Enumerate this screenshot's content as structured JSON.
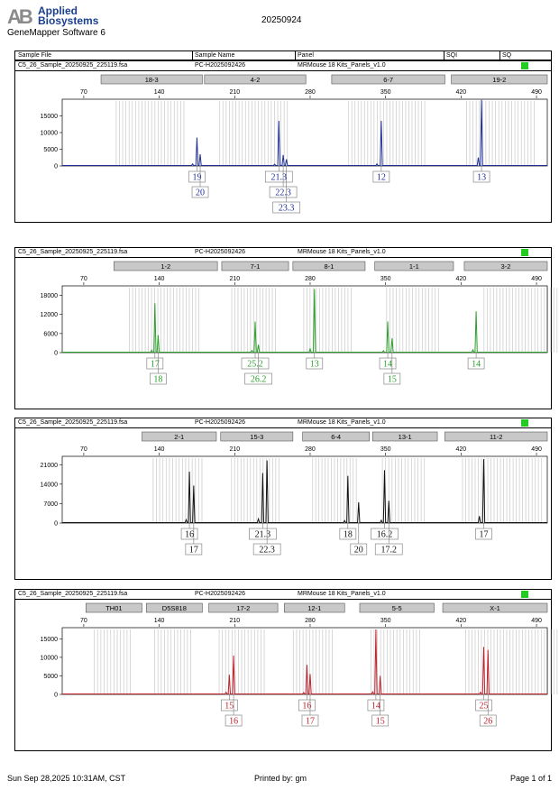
{
  "header": {
    "brand_mark": "AB",
    "brand_line1": "Applied",
    "brand_line2": "Biosystems",
    "software": "GeneMapper Software 6",
    "date": "20250924"
  },
  "columns": [
    "Sample File",
    "Sample Name",
    "Panel",
    "SQI",
    "SQ"
  ],
  "footer": {
    "printed_at": "Sun Sep 28,2025 10:31AM, CST",
    "printed_by": "Printed by: gm",
    "page": "Page 1 of 1"
  },
  "chart_data": [
    {
      "type": "line",
      "sample_file": "C5_26_Sample_20250925_225119.fsa",
      "sample_name": "PC-H2025092426",
      "panel": "MRMouse 18 Kits_Panels_v1.0",
      "sq_color": "#22cc22",
      "color": "#1f2f99",
      "x_ticks": [
        70,
        140,
        210,
        280,
        350,
        420,
        490
      ],
      "x_range": [
        50,
        500
      ],
      "y_ticks": [
        0,
        5000,
        10000,
        15000
      ],
      "y_range": [
        0,
        20000
      ],
      "markers": [
        {
          "label": "18-3",
          "start": 86,
          "end": 180
        },
        {
          "label": "4-2",
          "start": 182,
          "end": 276
        },
        {
          "label": "6-7",
          "start": 300,
          "end": 405
        },
        {
          "label": "19-2",
          "start": 411,
          "end": 505
        }
      ],
      "peaks": [
        {
          "x": 175,
          "h": 8500
        },
        {
          "x": 178,
          "h": 3500
        },
        {
          "x": 171,
          "h": 600
        },
        {
          "x": 251,
          "h": 13500
        },
        {
          "x": 255,
          "h": 3300
        },
        {
          "x": 258,
          "h": 2000
        },
        {
          "x": 247,
          "h": 500
        },
        {
          "x": 346,
          "h": 13500
        },
        {
          "x": 342,
          "h": 600
        },
        {
          "x": 439,
          "h": 19800
        },
        {
          "x": 436,
          "h": 2500
        }
      ],
      "alleles": [
        {
          "x": 175,
          "row": 0,
          "text": "19"
        },
        {
          "x": 178,
          "row": 1,
          "text": "20"
        },
        {
          "x": 251,
          "row": 0,
          "text": "21.3"
        },
        {
          "x": 255,
          "row": 1,
          "text": "22.3"
        },
        {
          "x": 258,
          "row": 2,
          "text": "23.3"
        },
        {
          "x": 346,
          "row": 0,
          "text": "12"
        },
        {
          "x": 439,
          "row": 0,
          "text": "13"
        }
      ]
    },
    {
      "type": "line",
      "sample_file": "C5_26_Sample_20250925_225119.fsa",
      "sample_name": "PC-H2025092426",
      "panel": "MRMouse 18 Kits_Panels_v1.0",
      "sq_color": "#22cc22",
      "color": "#2aa02a",
      "x_ticks": [
        70,
        140,
        210,
        280,
        350,
        420,
        490
      ],
      "x_range": [
        50,
        500
      ],
      "y_ticks": [
        0,
        6000,
        12000,
        18000
      ],
      "y_range": [
        0,
        21000
      ],
      "markers": [
        {
          "label": "1-2",
          "start": 98,
          "end": 194
        },
        {
          "label": "7-1",
          "start": 198,
          "end": 260
        },
        {
          "label": "8-1",
          "start": 264,
          "end": 331
        },
        {
          "label": "1-1",
          "start": 340,
          "end": 413
        },
        {
          "label": "3-2",
          "start": 423,
          "end": 545
        }
      ],
      "peaks": [
        {
          "x": 136,
          "h": 15500
        },
        {
          "x": 139,
          "h": 5500
        },
        {
          "x": 133,
          "h": 800
        },
        {
          "x": 229,
          "h": 9800
        },
        {
          "x": 232,
          "h": 2500
        },
        {
          "x": 226,
          "h": 700
        },
        {
          "x": 284,
          "h": 20000
        },
        {
          "x": 280,
          "h": 1200
        },
        {
          "x": 352,
          "h": 9800
        },
        {
          "x": 356,
          "h": 4500
        },
        {
          "x": 348,
          "h": 600
        },
        {
          "x": 434,
          "h": 13000
        },
        {
          "x": 431,
          "h": 900
        }
      ],
      "alleles": [
        {
          "x": 136,
          "row": 0,
          "text": "17"
        },
        {
          "x": 139,
          "row": 1,
          "text": "18"
        },
        {
          "x": 229,
          "row": 0,
          "text": "25.2"
        },
        {
          "x": 232,
          "row": 1,
          "text": "26.2"
        },
        {
          "x": 284,
          "row": 0,
          "text": "13"
        },
        {
          "x": 352,
          "row": 0,
          "text": "14"
        },
        {
          "x": 356,
          "row": 1,
          "text": "15"
        },
        {
          "x": 434,
          "row": 0,
          "text": "14"
        }
      ]
    },
    {
      "type": "line",
      "sample_file": "C5_26_Sample_20250925_225119.fsa",
      "sample_name": "PC-H2025092426",
      "panel": "MRMouse 18 Kits_Panels_v1.0",
      "sq_color": "#22cc22",
      "color": "#111111",
      "x_ticks": [
        70,
        140,
        210,
        280,
        350,
        420,
        490
      ],
      "x_range": [
        50,
        500
      ],
      "y_ticks": [
        0,
        7000,
        14000,
        21000
      ],
      "y_range": [
        0,
        24000
      ],
      "markers": [
        {
          "label": "2-1",
          "start": 124,
          "end": 193
        },
        {
          "label": "15-3",
          "start": 197,
          "end": 264
        },
        {
          "label": "6-4",
          "start": 273,
          "end": 335
        },
        {
          "label": "13-1",
          "start": 338,
          "end": 398
        },
        {
          "label": "11-2",
          "start": 405,
          "end": 514
        }
      ],
      "peaks": [
        {
          "x": 168,
          "h": 18500
        },
        {
          "x": 172,
          "h": 13500
        },
        {
          "x": 165,
          "h": 1200
        },
        {
          "x": 236,
          "h": 18000
        },
        {
          "x": 240,
          "h": 22500
        },
        {
          "x": 232,
          "h": 1500
        },
        {
          "x": 315,
          "h": 17000
        },
        {
          "x": 325,
          "h": 7500
        },
        {
          "x": 312,
          "h": 900
        },
        {
          "x": 349,
          "h": 19000
        },
        {
          "x": 353,
          "h": 8000
        },
        {
          "x": 346,
          "h": 1000
        },
        {
          "x": 441,
          "h": 23000
        },
        {
          "x": 437,
          "h": 2500
        }
      ],
      "alleles": [
        {
          "x": 168,
          "row": 0,
          "text": "16"
        },
        {
          "x": 172,
          "row": 1,
          "text": "17"
        },
        {
          "x": 236,
          "row": 0,
          "text": "21.3"
        },
        {
          "x": 240,
          "row": 1,
          "text": "22.3"
        },
        {
          "x": 315,
          "row": 0,
          "text": "18"
        },
        {
          "x": 325,
          "row": 1,
          "text": "20"
        },
        {
          "x": 349,
          "row": 0,
          "text": "16.2"
        },
        {
          "x": 353,
          "row": 1,
          "text": "17.2"
        },
        {
          "x": 441,
          "row": 0,
          "text": "17"
        }
      ]
    },
    {
      "type": "line",
      "sample_file": "C5_26_Sample_20250925_225119.fsa",
      "sample_name": "PC-H2025092426",
      "panel": "MRMouse 18 Kits_Panels_v1.0",
      "sq_color": "#22cc22",
      "color": "#c0202a",
      "x_ticks": [
        70,
        140,
        210,
        280,
        350,
        420,
        490
      ],
      "x_range": [
        50,
        500
      ],
      "y_ticks": [
        0,
        5000,
        10000,
        15000
      ],
      "y_range": [
        0,
        18000
      ],
      "markers": [
        {
          "label": "TH01",
          "start": 72,
          "end": 124
        },
        {
          "label": "D5S818",
          "start": 128,
          "end": 180
        },
        {
          "label": "17-2",
          "start": 186,
          "end": 250
        },
        {
          "label": "12-1",
          "start": 256,
          "end": 312
        },
        {
          "label": "5-5",
          "start": 326,
          "end": 395
        },
        {
          "label": "X-1",
          "start": 403,
          "end": 545
        }
      ],
      "peaks": [
        {
          "x": 205,
          "h": 5300
        },
        {
          "x": 209,
          "h": 10500
        },
        {
          "x": 202,
          "h": 600
        },
        {
          "x": 277,
          "h": 8000
        },
        {
          "x": 280,
          "h": 5500
        },
        {
          "x": 274,
          "h": 500
        },
        {
          "x": 341,
          "h": 17500
        },
        {
          "x": 345,
          "h": 5000
        },
        {
          "x": 338,
          "h": 700
        },
        {
          "x": 441,
          "h": 12800
        },
        {
          "x": 445,
          "h": 12000
        },
        {
          "x": 438,
          "h": 600
        }
      ],
      "alleles": [
        {
          "x": 205,
          "row": 0,
          "text": "15"
        },
        {
          "x": 209,
          "row": 1,
          "text": "16"
        },
        {
          "x": 277,
          "row": 0,
          "text": "16"
        },
        {
          "x": 280,
          "row": 1,
          "text": "17"
        },
        {
          "x": 341,
          "row": 0,
          "text": "14"
        },
        {
          "x": 345,
          "row": 1,
          "text": "15"
        },
        {
          "x": 441,
          "row": 0,
          "text": "25"
        },
        {
          "x": 445,
          "row": 1,
          "text": "26"
        }
      ]
    }
  ]
}
